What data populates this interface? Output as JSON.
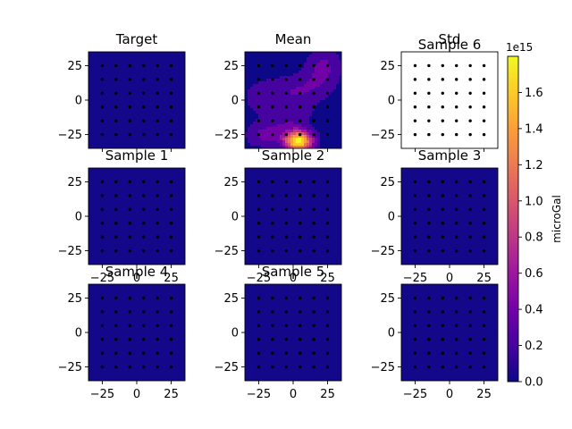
{
  "chart_data": {
    "type": "heatmap",
    "grid": false,
    "colormap": "plasma",
    "colormap_stops": [
      "#0d0887",
      "#46039f",
      "#7201a8",
      "#9c179e",
      "#bd3786",
      "#d8576b",
      "#ed7953",
      "#fb9f3a",
      "#fdca26",
      "#f0f921"
    ],
    "empty_color": "#ffffff",
    "background_level": 0.02,
    "sensor_rows_y": [
      25,
      15,
      5,
      -5,
      -15,
      -25
    ],
    "sensor_cols_x": [
      -25,
      -15,
      -5,
      5,
      15,
      25
    ],
    "xlim": [
      -35,
      35
    ],
    "ylim": [
      -35,
      35
    ],
    "xticks": [
      {
        "v": -25,
        "label": "−25"
      },
      {
        "v": 0,
        "label": "0"
      },
      {
        "v": 25,
        "label": "25"
      }
    ],
    "yticks": [
      {
        "v": 25,
        "label": "25"
      },
      {
        "v": 0,
        "label": "0"
      },
      {
        "v": -25,
        "label": "−25"
      }
    ],
    "panels": [
      {
        "title": "Target",
        "fill": "flat",
        "x_ticks_visible": false
      },
      {
        "title": "Mean",
        "fill": "field",
        "x_ticks_visible": false,
        "field": [
          {
            "x": 22,
            "y": 24,
            "sx": 9,
            "sy": 10,
            "a": 0.38
          },
          {
            "x": 8,
            "y": 8,
            "sx": 13,
            "sy": 8,
            "a": 0.28
          },
          {
            "x": -18,
            "y": 2,
            "sx": 14,
            "sy": 10,
            "a": 0.26
          },
          {
            "x": 4,
            "y": -30,
            "sx": 7,
            "sy": 5,
            "a": 1.75
          },
          {
            "x": -6,
            "y": -22,
            "sx": 12,
            "sy": 7,
            "a": 0.32
          },
          {
            "x": -24,
            "y": -26,
            "sx": 8,
            "sy": 6,
            "a": 0.28
          },
          {
            "x": 2,
            "y": -8,
            "sx": 10,
            "sy": 6,
            "a": 0.18
          }
        ]
      },
      {
        "title": "Std",
        "overlay_title": "Sample 6",
        "fill": "blank",
        "x_ticks_visible": false
      },
      {
        "title": "Sample 1",
        "fill": "flat",
        "x_ticks_visible": true
      },
      {
        "title": "Sample 2",
        "fill": "flat",
        "x_ticks_visible": true
      },
      {
        "title": "Sample 3",
        "fill": "flat",
        "x_ticks_visible": true
      },
      {
        "title": "Sample 4",
        "fill": "flat",
        "x_ticks_visible": true
      },
      {
        "title": "Sample 5",
        "fill": "flat",
        "x_ticks_visible": true
      },
      {
        "title": "",
        "fill": "flat",
        "x_ticks_visible": true
      }
    ],
    "colorbar": {
      "label": "microGal",
      "exponent": "1e15",
      "range": [
        0,
        1.8
      ],
      "ticks": [
        {
          "v": 0.0,
          "label": "0.0"
        },
        {
          "v": 0.2,
          "label": "0.2"
        },
        {
          "v": 0.4,
          "label": "0.4"
        },
        {
          "v": 0.6,
          "label": "0.6"
        },
        {
          "v": 0.8,
          "label": "0.8"
        },
        {
          "v": 1.0,
          "label": "1.0"
        },
        {
          "v": 1.2,
          "label": "1.2"
        },
        {
          "v": 1.4,
          "label": "1.4"
        },
        {
          "v": 1.6,
          "label": "1.6"
        }
      ]
    }
  }
}
